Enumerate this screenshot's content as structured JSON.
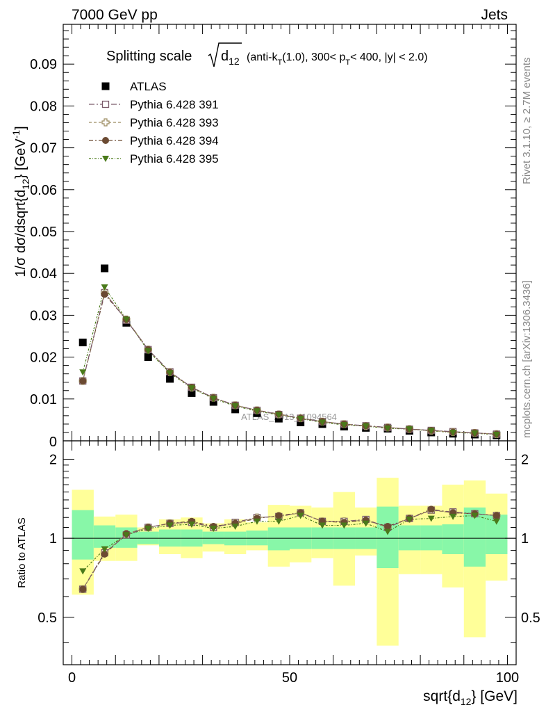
{
  "header": {
    "left": "7000 GeV pp",
    "right": "Jets"
  },
  "side_labels": {
    "rivet": "Rivet 3.1.10, ≥ 2.7M events",
    "mcplots": "mcplots.cern.ch [arXiv:1306.3436]"
  },
  "watermark": "ATLAS_2013_I1094564",
  "title": {
    "prefix": "Splitting scale",
    "sqrt_arg": "d",
    "sqrt_sub": "12",
    "paren_1": "(anti-k",
    "paren_1_sub": "T",
    "paren_2": "(1.0), 300< p",
    "paren_2_sub": "T",
    "paren_3": "< 400, |y| < 2.0)"
  },
  "colors": {
    "atlas": "#000000",
    "p391": "#7a5a6a",
    "p393": "#9c8c60",
    "p394": "#6b4a32",
    "p395": "#4a7a1a",
    "band_inner": "#88f7a8",
    "band_outer": "#ffff99"
  },
  "chart_data": [
    {
      "type": "scatter",
      "panel": "main",
      "ylabel": "1/σ dσ/dsqrt{d",
      "ylabel_sub": "12",
      "ylabel_tail": "} [GeV",
      "ylabel_sup": "-1",
      "ylabel_close": "]",
      "xlim": [
        -2,
        102
      ],
      "ylim": [
        0,
        0.0995
      ],
      "yticks": [
        0.01,
        0.02,
        0.03,
        0.04,
        0.05,
        0.06,
        0.07,
        0.08,
        0.09
      ],
      "ytick_labels": [
        "0.01",
        "0.02",
        "0.03",
        "0.04",
        "0.05",
        "0.06",
        "0.07",
        "0.08",
        "0.09"
      ],
      "bottom_tick_label": "0",
      "x": [
        2.5,
        7.5,
        12.5,
        17.5,
        22.5,
        27.5,
        32.5,
        37.5,
        42.5,
        47.5,
        52.5,
        57.5,
        62.5,
        67.5,
        72.5,
        77.5,
        82.5,
        87.5,
        92.5,
        97.5
      ],
      "series": [
        {
          "name": "ATLAS",
          "values": [
            0.0235,
            0.0412,
            0.0282,
            0.02,
            0.0148,
            0.0114,
            0.0093,
            0.0075,
            0.0066,
            0.0053,
            0.0044,
            0.004,
            0.0034,
            0.0031,
            0.0029,
            0.0024,
            0.002,
            0.0017,
            0.0015,
            0.0013
          ]
        },
        {
          "name": "Pythia 6.428 391",
          "values": [
            0.0143,
            0.0354,
            0.0288,
            0.0218,
            0.0165,
            0.0128,
            0.0103,
            0.0085,
            0.0073,
            0.0063,
            0.0054,
            0.0046,
            0.004,
            0.0036,
            0.0032,
            0.0028,
            0.0025,
            0.0022,
            0.0019,
            0.0016
          ]
        },
        {
          "name": "Pythia 6.428 393",
          "values": [
            0.0143,
            0.0354,
            0.029,
            0.0218,
            0.0164,
            0.0127,
            0.0103,
            0.0085,
            0.0073,
            0.0063,
            0.0054,
            0.0046,
            0.004,
            0.0035,
            0.0032,
            0.0028,
            0.0024,
            0.0021,
            0.0019,
            0.0016
          ]
        },
        {
          "name": "Pythia 6.428 394",
          "values": [
            0.0143,
            0.035,
            0.029,
            0.0218,
            0.0164,
            0.0128,
            0.0103,
            0.0085,
            0.0073,
            0.0064,
            0.0054,
            0.0046,
            0.004,
            0.0036,
            0.0032,
            0.0028,
            0.0025,
            0.0021,
            0.0019,
            0.0016
          ]
        },
        {
          "name": "Pythia 6.428 395",
          "values": [
            0.0164,
            0.0367,
            0.029,
            0.0215,
            0.0162,
            0.0126,
            0.0101,
            0.0083,
            0.0071,
            0.0062,
            0.0053,
            0.0044,
            0.0038,
            0.0035,
            0.003,
            0.0028,
            0.0024,
            0.002,
            0.0018,
            0.0015
          ]
        }
      ]
    },
    {
      "type": "scatter",
      "panel": "ratio",
      "ylabel": "Ratio to ATLAS",
      "xlabel": "sqrt{d",
      "xlabel_sub": "12",
      "xlabel_tail": "} [GeV]",
      "xlim": [
        -2,
        102
      ],
      "ylim": [
        0.33,
        2.35
      ],
      "yscale": "log",
      "yticks": [
        0.5,
        1,
        2
      ],
      "ytick_labels": [
        "0.5",
        "1",
        "2"
      ],
      "xticks": [
        0,
        50,
        100
      ],
      "xtick_labels": [
        "0",
        "50",
        "100"
      ],
      "x": [
        2.5,
        7.5,
        12.5,
        17.5,
        22.5,
        27.5,
        32.5,
        37.5,
        42.5,
        47.5,
        52.5,
        57.5,
        62.5,
        67.5,
        72.5,
        77.5,
        82.5,
        87.5,
        92.5,
        97.5
      ],
      "bands": {
        "inner_low": [
          0.83,
          0.92,
          0.92,
          0.95,
          0.93,
          0.93,
          0.95,
          0.94,
          0.94,
          0.9,
          0.91,
          0.91,
          0.91,
          0.91,
          0.77,
          0.9,
          0.9,
          0.87,
          0.78,
          0.87
        ],
        "inner_high": [
          1.28,
          1.12,
          1.1,
          1.06,
          1.08,
          1.08,
          1.06,
          1.06,
          1.07,
          1.1,
          1.1,
          1.1,
          1.1,
          1.1,
          1.32,
          1.12,
          1.12,
          1.13,
          1.31,
          1.23
        ],
        "outer_low": [
          0.61,
          0.82,
          0.82,
          0.94,
          0.87,
          0.84,
          0.89,
          0.87,
          0.9,
          0.78,
          0.81,
          0.84,
          0.66,
          0.86,
          0.39,
          0.73,
          0.73,
          0.65,
          0.42,
          0.69
        ],
        "outer_high": [
          1.53,
          1.21,
          1.23,
          1.1,
          1.18,
          1.2,
          1.14,
          1.18,
          1.15,
          1.34,
          1.33,
          1.31,
          1.5,
          1.31,
          1.7,
          1.33,
          1.33,
          1.6,
          1.66,
          1.48
        ]
      },
      "series": [
        {
          "name": "Pythia 6.428 391",
          "values": [
            0.64,
            0.88,
            1.03,
            1.1,
            1.14,
            1.15,
            1.1,
            1.15,
            1.2,
            1.21,
            1.25,
            1.16,
            1.16,
            1.18,
            1.1,
            1.19,
            1.28,
            1.26,
            1.24,
            1.22
          ]
        },
        {
          "name": "Pythia 6.428 393",
          "values": [
            0.64,
            0.88,
            1.04,
            1.1,
            1.14,
            1.15,
            1.1,
            1.14,
            1.2,
            1.21,
            1.25,
            1.16,
            1.16,
            1.17,
            1.1,
            1.19,
            1.28,
            1.25,
            1.24,
            1.22
          ]
        },
        {
          "name": "Pythia 6.428 394",
          "values": [
            0.64,
            0.87,
            1.04,
            1.1,
            1.14,
            1.16,
            1.11,
            1.14,
            1.19,
            1.22,
            1.25,
            1.16,
            1.15,
            1.17,
            1.11,
            1.19,
            1.29,
            1.25,
            1.24,
            1.22
          ]
        },
        {
          "name": "Pythia 6.428 395",
          "values": [
            0.75,
            0.91,
            1.03,
            1.09,
            1.12,
            1.13,
            1.09,
            1.11,
            1.16,
            1.16,
            1.22,
            1.12,
            1.12,
            1.14,
            1.06,
            1.18,
            1.19,
            1.21,
            1.22,
            1.16
          ]
        }
      ]
    }
  ]
}
